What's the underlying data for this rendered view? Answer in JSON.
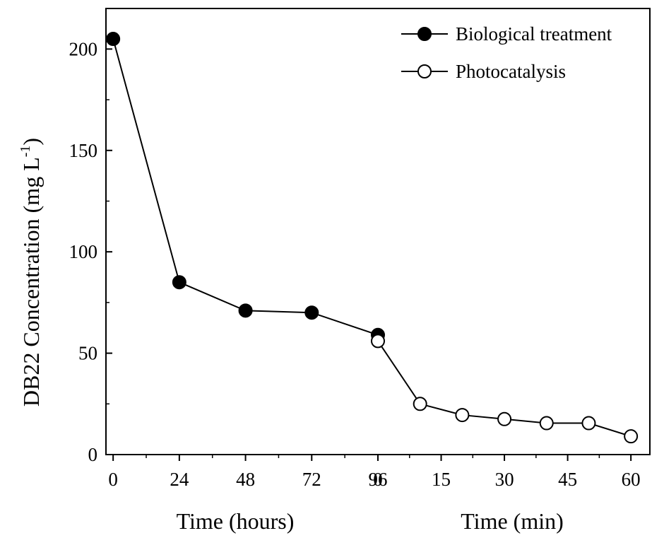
{
  "chart_data": {
    "type": "line",
    "ylabel": "DB22 Concentration (mg L",
    "ylabel_superscript": "-1",
    "ylabel_close": ")",
    "ylim": [
      0,
      220
    ],
    "yticks": [
      0,
      50,
      100,
      150,
      200
    ],
    "grid": false,
    "legend_position": "top-right",
    "panels": [
      {
        "xlabel": "Time (hours)",
        "xticks": [
          "0",
          "24",
          "48",
          "72",
          "96"
        ],
        "xlim": [
          -2.6,
          96
        ]
      },
      {
        "xlabel": "Time (min)",
        "xticks": [
          "0",
          "15",
          "30",
          "45",
          "60"
        ],
        "xlim": [
          0,
          64.5
        ]
      }
    ],
    "series": [
      {
        "name": "Biological treatment",
        "marker": "filled-circle",
        "color": "#000000",
        "panel": 0,
        "x": [
          0,
          24,
          48,
          72,
          96
        ],
        "y": [
          205,
          85,
          71,
          70,
          59
        ]
      },
      {
        "name": "Photocatalysis",
        "marker": "open-circle",
        "color": "#000000",
        "panel": 1,
        "x": [
          0,
          10,
          20,
          30,
          40,
          50,
          60
        ],
        "y": [
          56,
          25,
          19.5,
          17.5,
          15.5,
          15.5,
          9
        ]
      }
    ]
  }
}
